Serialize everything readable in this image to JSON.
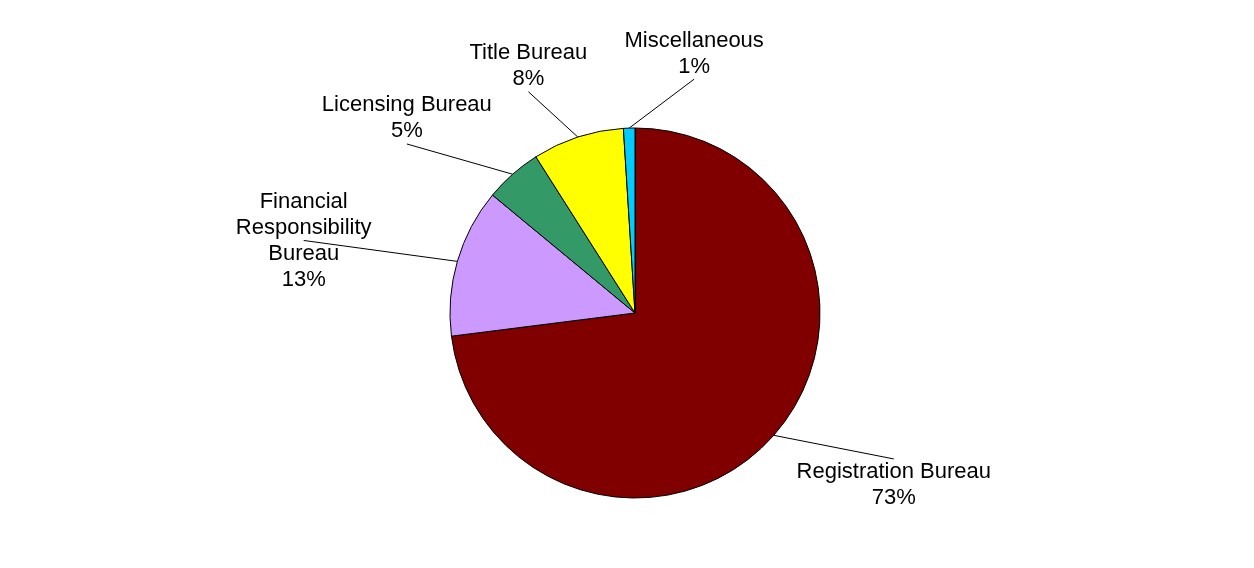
{
  "chart_data": {
    "type": "pie",
    "categories": [
      "Registration Bureau",
      "Financial Responsibility Bureau",
      "Licensing Bureau",
      "Title Bureau",
      "Miscellaneous"
    ],
    "values": [
      73,
      13,
      5,
      8,
      1
    ],
    "value_labels": [
      "73%",
      "13%",
      "5%",
      "8%",
      "1%"
    ],
    "colors": [
      "#800000",
      "#cc99ff",
      "#339966",
      "#ffff00",
      "#00ccff"
    ]
  }
}
